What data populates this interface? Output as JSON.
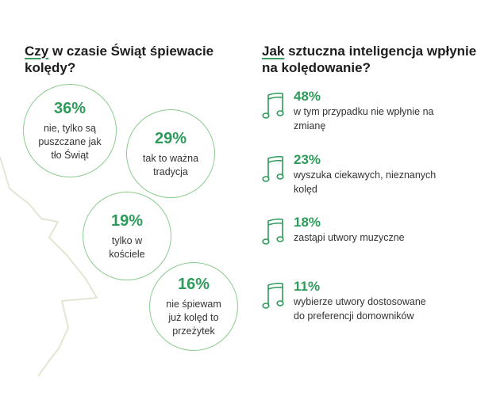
{
  "left_panel": {
    "heading_first_word": "Czy",
    "heading_rest": " w czasie Świąt śpiewacie kolędy?"
  },
  "right_panel": {
    "heading_first_word": "Jak",
    "heading_rest": " sztuczna inteligencja wpłynie na kolędowanie?"
  },
  "icons": {
    "bubble_outline": "circle",
    "row_icon": "music-note-icon",
    "background": "christmas-tree-outline"
  },
  "colors": {
    "accent_green": "#2e9b5a",
    "circle_border": "#8ccc8f",
    "tree_line": "#e3e6d2"
  },
  "chart_data": [
    {
      "type": "bubble",
      "title": "Czy w czasie Świąt śpiewacie kolędy?",
      "categories": [
        "nie, tylko są puszczane jak tło Świąt",
        "tak to ważna tradycja",
        "tylko w kościele",
        "nie śpiewam już kolęd to przeżytek"
      ],
      "values": [
        36,
        29,
        19,
        16
      ],
      "labels": [
        "36%",
        "29%",
        "19%",
        "16%"
      ]
    },
    {
      "type": "table",
      "title": "Jak sztuczna inteligencja wpłynie na kolędowanie?",
      "categories": [
        "w tym przypadku nie wpłynie na zmianę",
        "wyszuka ciekawych, nieznanych kolęd",
        "zastąpi utwory muzyczne",
        "wybierze utwory dostosowane do preferencji domowników"
      ],
      "values": [
        48,
        23,
        18,
        11
      ],
      "labels": [
        "48%",
        "23%",
        "18%",
        "11%"
      ]
    }
  ]
}
